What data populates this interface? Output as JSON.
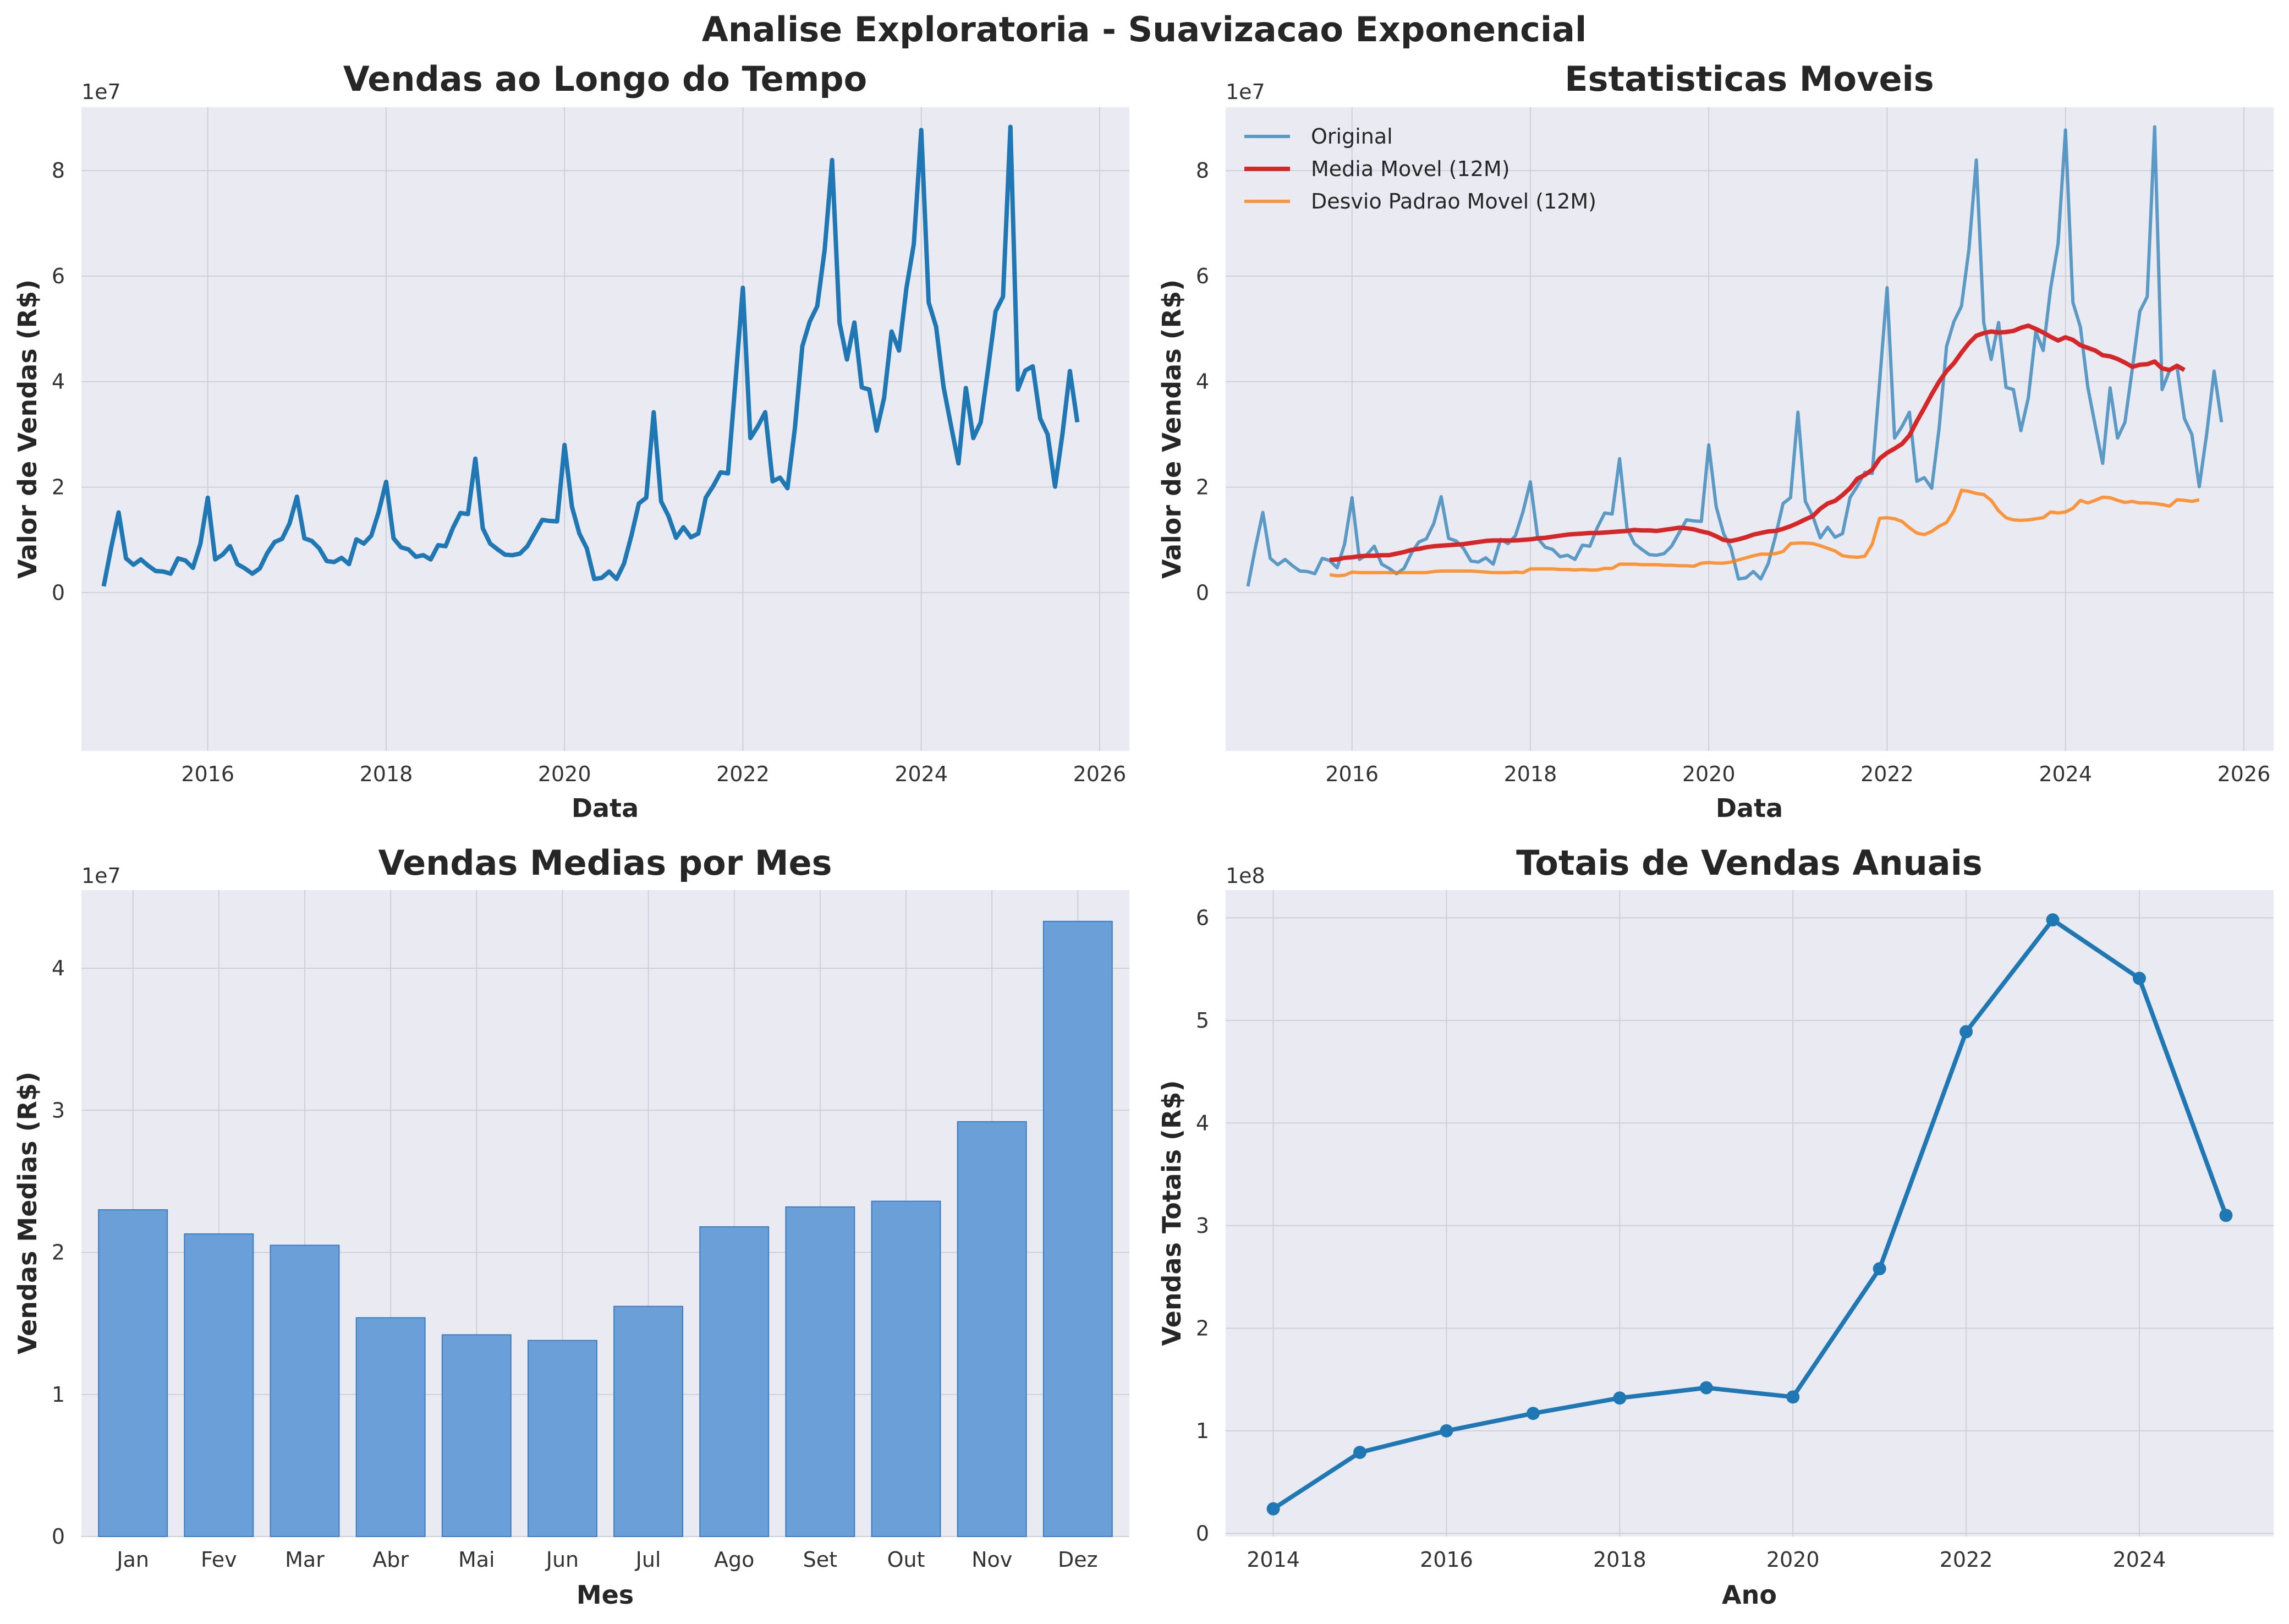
{
  "suptitle": "Analise Exploratoria - Suavizacao Exponencial",
  "panels": {
    "p1": {
      "title": "Vendas ao Longo do Tempo",
      "xlabel": "Data",
      "ylabel": "Valor de Vendas (R$)",
      "offset": "1e7"
    },
    "p2": {
      "title": "Estatisticas Moveis",
      "xlabel": "Data",
      "ylabel": "Valor de Vendas (R$)",
      "offset": "1e7"
    },
    "p3": {
      "title": "Vendas Medias por Mes",
      "xlabel": "Mes",
      "ylabel": "Vendas Medias (R$)",
      "offset": "1e7"
    },
    "p4": {
      "title": "Totais de Vendas Anuais",
      "xlabel": "Ano",
      "ylabel": "Vendas Totais (R$)",
      "offset": "1e8"
    }
  },
  "colors": {
    "blue": "#1f77b4",
    "red": "#d62728",
    "orange": "#ff7f0e",
    "bar": "#6a9fd8",
    "background": "#eaeaf2"
  },
  "chart_data": [
    {
      "type": "line",
      "title": "Vendas ao Longo do Tempo",
      "xlabel": "Data",
      "ylabel": "Valor de Vendas (R$)",
      "xlim": [
        "2014-08",
        "2026-05"
      ],
      "ylim": [
        -30000000,
        92000000
      ],
      "xticks": [
        "2016",
        "2018",
        "2020",
        "2022",
        "2024",
        "2026"
      ],
      "yticks": [
        0,
        20000000,
        40000000,
        60000000,
        80000000
      ],
      "ytick_labels": [
        "0",
        "2",
        "4",
        "6",
        "8"
      ],
      "grid": true,
      "series": [
        {
          "start": "2014-11",
          "values": [
            1.2,
            8.5,
            15.2,
            6.5,
            5.3,
            6.3,
            5.1,
            4.1,
            4.0,
            3.6,
            6.5,
            6.1,
            4.7,
            9.2,
            18.0,
            6.3,
            7.2,
            8.8,
            5.4,
            4.6,
            3.6,
            4.6,
            7.5,
            9.6,
            10.2,
            13.1,
            18.2,
            10.3,
            9.8,
            8.4,
            6.0,
            5.8,
            6.6,
            5.4,
            10.1,
            9.3,
            10.8,
            15.3,
            21.0,
            10.3,
            8.6,
            8.2,
            6.8,
            7.1,
            6.3,
            9.0,
            8.8,
            12.3,
            15.1,
            14.9,
            25.4,
            12.2,
            9.3,
            8.2,
            7.2,
            7.1,
            7.4,
            8.8,
            11.3,
            13.8,
            13.6,
            13.5,
            28.0,
            16.3,
            11.2,
            8.4,
            2.6,
            2.8,
            4.0,
            2.6,
            5.5,
            10.8,
            16.9,
            18.0,
            34.2,
            17.3,
            14.5,
            10.4,
            12.4,
            10.5,
            11.2,
            18.0,
            20.2,
            22.8,
            22.6,
            40.0,
            57.8,
            29.3,
            31.5,
            34.2,
            21.1,
            21.8,
            19.8,
            31.2,
            46.7,
            51.4,
            54.3,
            65.0,
            82.0,
            51.2,
            44.2,
            51.2,
            38.9,
            38.5,
            30.7,
            36.9,
            49.5,
            45.9,
            57.7,
            66.1,
            87.7,
            55.0,
            50.4,
            39.0,
            31.7,
            24.5,
            38.8,
            29.3,
            32.3,
            42.5,
            53.3,
            56.1,
            88.3,
            38.5,
            42.1,
            42.9,
            33.0,
            30.0,
            20.1,
            30.1,
            42.0,
            32.3
          ]
        }
      ]
    },
    {
      "type": "line",
      "title": "Estatisticas Moveis",
      "xlabel": "Data",
      "ylabel": "Valor de Vendas (R$)",
      "xlim": [
        "2014-08",
        "2026-05"
      ],
      "ylim": [
        -30000000,
        92000000
      ],
      "xticks": [
        "2016",
        "2018",
        "2020",
        "2022",
        "2024",
        "2026"
      ],
      "yticks": [
        0,
        20000000,
        40000000,
        60000000,
        80000000
      ],
      "ytick_labels": [
        "0",
        "2",
        "4",
        "6",
        "8"
      ],
      "grid": true,
      "legend": "top-left",
      "series": [
        {
          "name": "Original",
          "start": "2014-11",
          "ref": "original"
        },
        {
          "name": "Media Movel (12M)",
          "start": "2015-10",
          "values": [
            6.2,
            6.3,
            6.6,
            6.7,
            6.9,
            7.0,
            7.0,
            7.1,
            7.1,
            7.4,
            7.7,
            8.1,
            8.3,
            8.6,
            8.8,
            8.9,
            9.0,
            9.1,
            9.2,
            9.4,
            9.6,
            9.8,
            9.9,
            9.9,
            9.9,
            9.9,
            10.0,
            10.1,
            10.3,
            10.4,
            10.6,
            10.8,
            11.0,
            11.1,
            11.2,
            11.3,
            11.3,
            11.4,
            11.5,
            11.6,
            11.7,
            11.9,
            11.8,
            11.8,
            11.7,
            11.9,
            12.1,
            12.3,
            12.2,
            12.0,
            11.6,
            11.3,
            10.7,
            10.0,
            9.8,
            10.1,
            10.5,
            11.0,
            11.3,
            11.6,
            11.7,
            12.1,
            12.6,
            13.2,
            13.9,
            14.5,
            15.9,
            16.9,
            17.4,
            18.5,
            19.8,
            21.6,
            22.3,
            23.3,
            25.4,
            26.5,
            27.3,
            28.2,
            29.8,
            32.5,
            35.0,
            37.6,
            40.0,
            42.0,
            43.5,
            45.5,
            47.3,
            48.7,
            49.2,
            49.5,
            49.3,
            49.4,
            49.6,
            50.2,
            50.6,
            50.0,
            49.3,
            48.5,
            47.8,
            48.4,
            47.9,
            46.9,
            46.4,
            45.9,
            45.0,
            44.8,
            44.3,
            43.6,
            42.8,
            43.2,
            43.3,
            43.8,
            42.5,
            42.2,
            43.0,
            42.2
          ]
        },
        {
          "name": "Desvio Padrao Movel (12M)",
          "start": "2015-10",
          "values": [
            3.4,
            3.2,
            3.3,
            3.9,
            3.8,
            3.8,
            3.8,
            3.8,
            3.8,
            3.8,
            3.8,
            3.8,
            3.8,
            3.8,
            4.0,
            4.1,
            4.1,
            4.1,
            4.1,
            4.1,
            4.0,
            3.9,
            3.8,
            3.8,
            3.8,
            3.9,
            3.8,
            4.5,
            4.5,
            4.5,
            4.5,
            4.4,
            4.4,
            4.3,
            4.4,
            4.3,
            4.3,
            4.6,
            4.6,
            5.4,
            5.4,
            5.4,
            5.3,
            5.3,
            5.3,
            5.2,
            5.2,
            5.1,
            5.1,
            5.0,
            5.6,
            5.7,
            5.6,
            5.6,
            5.8,
            6.2,
            6.6,
            7.0,
            7.3,
            7.3,
            7.4,
            7.8,
            9.3,
            9.4,
            9.4,
            9.3,
            8.9,
            8.4,
            7.9,
            7.0,
            6.8,
            6.7,
            6.9,
            9.2,
            14.1,
            14.2,
            14.0,
            13.5,
            12.3,
            11.3,
            11.0,
            11.6,
            12.6,
            13.3,
            15.5,
            19.4,
            19.2,
            18.8,
            18.6,
            17.5,
            15.5,
            14.2,
            13.8,
            13.7,
            13.8,
            14.0,
            14.2,
            15.3,
            15.1,
            15.3,
            16.0,
            17.5,
            17.0,
            17.5,
            18.1,
            18.0,
            17.5,
            17.1,
            17.3,
            17.0,
            17.0,
            16.9,
            16.7,
            16.4,
            17.6,
            17.5,
            17.3,
            17.6
          ]
        }
      ]
    },
    {
      "type": "bar",
      "title": "Vendas Medias por Mes",
      "xlabel": "Mes",
      "ylabel": "Vendas Medias (R$)",
      "categories": [
        "Jan",
        "Fev",
        "Mar",
        "Abr",
        "Mai",
        "Jun",
        "Jul",
        "Ago",
        "Set",
        "Out",
        "Nov",
        "Dez"
      ],
      "values": [
        23000000,
        21300000,
        20500000,
        15400000,
        14200000,
        13800000,
        16200000,
        21800000,
        23200000,
        23600000,
        29200000,
        43300000
      ],
      "ylim": [
        0,
        45500000
      ],
      "yticks": [
        0,
        10000000,
        20000000,
        30000000,
        40000000
      ],
      "ytick_labels": [
        "0",
        "1",
        "2",
        "3",
        "4"
      ],
      "grid": true
    },
    {
      "type": "line",
      "title": "Totais de Vendas Anuais",
      "xlabel": "Ano",
      "ylabel": "Vendas Totais (R$)",
      "x": [
        2014,
        2015,
        2016,
        2017,
        2018,
        2019,
        2020,
        2021,
        2022,
        2023,
        2024,
        2025
      ],
      "values": [
        24000000,
        79000000,
        100000000,
        117000000,
        132000000,
        142000000,
        133000000,
        258000000,
        489000000,
        598000000,
        541000000,
        310000000
      ],
      "xlim": [
        2013.45,
        2025.55
      ],
      "ylim": [
        -3000000,
        627000000
      ],
      "xticks": [
        2014,
        2016,
        2018,
        2020,
        2022,
        2024
      ],
      "yticks": [
        0,
        100000000,
        200000000,
        300000000,
        400000000,
        500000000,
        600000000
      ],
      "ytick_labels": [
        "0",
        "1",
        "2",
        "3",
        "4",
        "5",
        "6"
      ],
      "markers": true,
      "grid": true
    }
  ]
}
